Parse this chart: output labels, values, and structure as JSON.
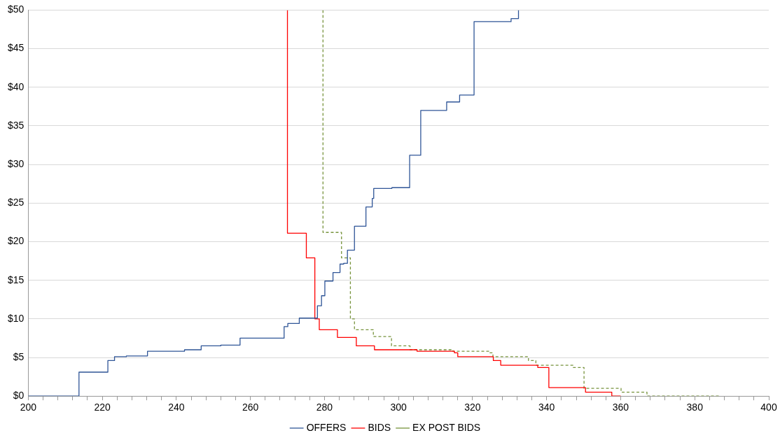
{
  "chart_data": {
    "type": "step",
    "xlim": [
      200,
      400
    ],
    "xticks": [
      200,
      {
        "value": 204,
        "label": null
      },
      {
        "value": 208,
        "label": null
      },
      {
        "value": 212,
        "label": null
      },
      {
        "value": 216,
        "label": null
      },
      220,
      {
        "value": 224,
        "label": null
      },
      {
        "value": 228,
        "label": null
      },
      {
        "value": 232,
        "label": null
      },
      {
        "value": 236,
        "label": null
      },
      240,
      {
        "value": 244,
        "label": null
      },
      {
        "value": 248,
        "label": null
      },
      {
        "value": 252,
        "label": null
      },
      {
        "value": 256,
        "label": null
      },
      260,
      {
        "value": 264,
        "label": null
      },
      {
        "value": 268,
        "label": null
      },
      {
        "value": 272,
        "label": null
      },
      {
        "value": 276,
        "label": null
      },
      280,
      {
        "value": 284,
        "label": null
      },
      {
        "value": 288,
        "label": null
      },
      {
        "value": 292,
        "label": null
      },
      {
        "value": 296,
        "label": null
      },
      300,
      {
        "value": 304,
        "label": null
      },
      {
        "value": 308,
        "label": null
      },
      {
        "value": 312,
        "label": null
      },
      {
        "value": 316,
        "label": null
      },
      320,
      {
        "value": 324,
        "label": null
      },
      {
        "value": 328,
        "label": null
      },
      {
        "value": 332,
        "label": null
      },
      {
        "value": 336,
        "label": null
      },
      340,
      {
        "value": 344,
        "label": null
      },
      {
        "value": 348,
        "label": null
      },
      {
        "value": 352,
        "label": null
      },
      {
        "value": 356,
        "label": null
      },
      360,
      {
        "value": 364,
        "label": null
      },
      {
        "value": 368,
        "label": null
      },
      {
        "value": 372,
        "label": null
      },
      {
        "value": 376,
        "label": null
      },
      380,
      {
        "value": 384,
        "label": null
      },
      {
        "value": 388,
        "label": null
      },
      {
        "value": 392,
        "label": null
      },
      {
        "value": 396,
        "label": null
      },
      400
    ],
    "ylim": [
      0,
      50
    ],
    "yticks": [
      {
        "value": 0,
        "label": "$0"
      },
      {
        "value": 5,
        "label": "$5"
      },
      {
        "value": 10,
        "label": "$10"
      },
      {
        "value": 15,
        "label": "$15"
      },
      {
        "value": 20,
        "label": "$20"
      },
      {
        "value": 25,
        "label": "$25"
      },
      {
        "value": 30,
        "label": "$30"
      },
      {
        "value": 35,
        "label": "$35"
      },
      {
        "value": 40,
        "label": "$40"
      },
      {
        "value": 45,
        "label": "$45"
      },
      {
        "value": 50,
        "label": "$50"
      }
    ],
    "grid": "y",
    "legend": "bottom",
    "series": [
      {
        "name": "OFFERS",
        "color": "#2f5597",
        "line_style": "solid",
        "x": [
          200,
          213.7,
          221.5,
          223.3,
          226.5,
          232.2,
          242.2,
          246.7,
          252,
          257.2,
          269.1,
          270.1,
          273.2,
          278.1,
          279.2,
          280.1,
          282.3,
          284.2,
          285.2,
          286.2,
          288.1,
          291.2,
          292.9,
          293.3,
          298.2,
          303,
          306,
          313,
          316.5,
          320.4,
          330.4,
          332.4
        ],
        "values": [
          0,
          3.1,
          4.6,
          5.1,
          5.2,
          5.8,
          6,
          6.5,
          6.6,
          7.5,
          9,
          9.4,
          10.1,
          11.7,
          13,
          14.9,
          16,
          17.1,
          17.2,
          18.9,
          22,
          24.5,
          25.6,
          26.9,
          27,
          31.2,
          37,
          38.1,
          39,
          48.5,
          48.9,
          50
        ]
      },
      {
        "name": "BIDS",
        "color": "#ff0000",
        "line_style": "solid",
        "x": [
          270,
          270,
          275.1,
          277.4,
          278.6,
          283.5,
          288.6,
          293.5,
          305,
          315.1,
          316,
          325.6,
          327.6,
          337.6,
          340.6,
          350.5,
          357.6,
          360
        ],
        "values": [
          50,
          21.1,
          17.9,
          10,
          8.6,
          7.6,
          6.5,
          6,
          5.8,
          5.6,
          5.1,
          4.6,
          4,
          3.7,
          1.1,
          0.5,
          0,
          0
        ]
      },
      {
        "name": "EX POST BIDS",
        "color": "#77933c",
        "line_style": "dashed",
        "x": [
          279.6,
          279.6,
          284.6,
          287,
          288.1,
          293.2,
          298.1,
          303.1,
          314.7,
          324.5,
          325.5,
          335.1,
          337.1,
          347.1,
          350.1,
          360.1,
          367.1,
          387
        ],
        "values": [
          50,
          21.2,
          17.9,
          10,
          8.6,
          7.7,
          6.5,
          6,
          5.8,
          5.6,
          5.1,
          4.6,
          4,
          3.7,
          1,
          0.5,
          0,
          0
        ]
      }
    ]
  }
}
